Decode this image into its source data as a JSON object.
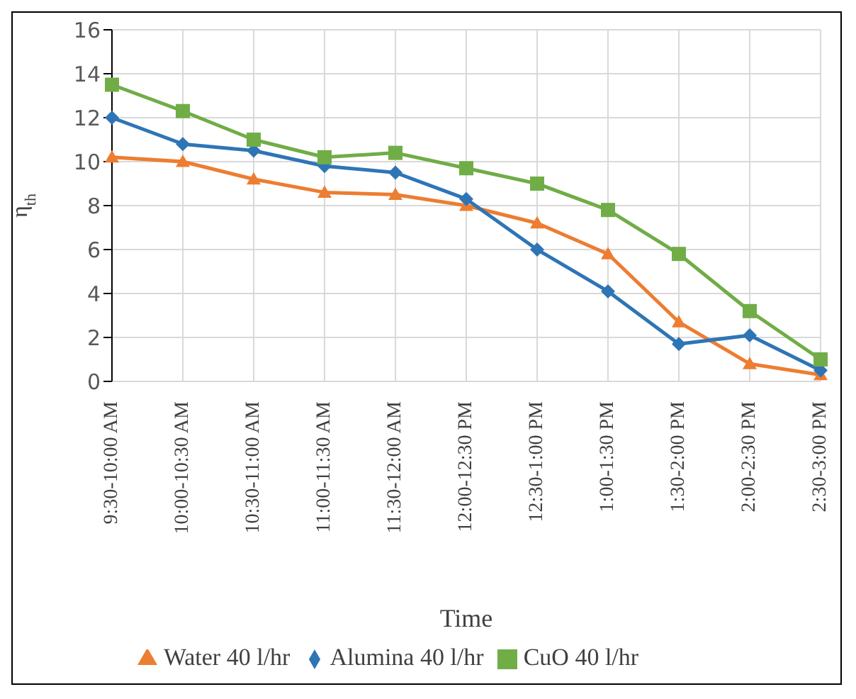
{
  "chart_data": {
    "type": "line",
    "xlabel": "Time",
    "ylabel": "η$_{th}$",
    "categories": [
      "9:30-10:00 AM",
      "10:00-10:30 AM",
      "10:30-11:00 AM",
      "11:00-11:30 AM",
      "11:30-12:00 AM",
      "12:00-12:30 PM",
      "12:30-1:00 PM",
      "1:00-1:30 PM",
      "1:30-2:00 PM",
      "2:00-2:30 PM",
      "2:30-3:00 PM"
    ],
    "series": [
      {
        "name": "Water 40 l/hr",
        "color": "#ed7d31",
        "marker": "triangle",
        "values": [
          10.2,
          10,
          9.2,
          8.6,
          8.5,
          8,
          7.2,
          5.8,
          2.7,
          0.8,
          0.3
        ]
      },
      {
        "name": "Alumina 40 l/hr",
        "color": "#2e75b6",
        "marker": "diamond",
        "values": [
          12,
          10.8,
          10.5,
          9.8,
          9.5,
          8.3,
          6,
          4.1,
          1.7,
          2.1,
          0.5
        ]
      },
      {
        "name": "CuO 40 l/hr",
        "color": "#70ad47",
        "marker": "square",
        "values": [
          13.5,
          12.3,
          11,
          10.2,
          10.4,
          9.7,
          9,
          7.8,
          5.8,
          3.2,
          1.0
        ]
      }
    ],
    "ylim": [
      0,
      16
    ],
    "yticks": [
      0,
      2,
      4,
      6,
      8,
      10,
      12,
      14,
      16
    ],
    "grid": true,
    "legend": "bottom"
  }
}
